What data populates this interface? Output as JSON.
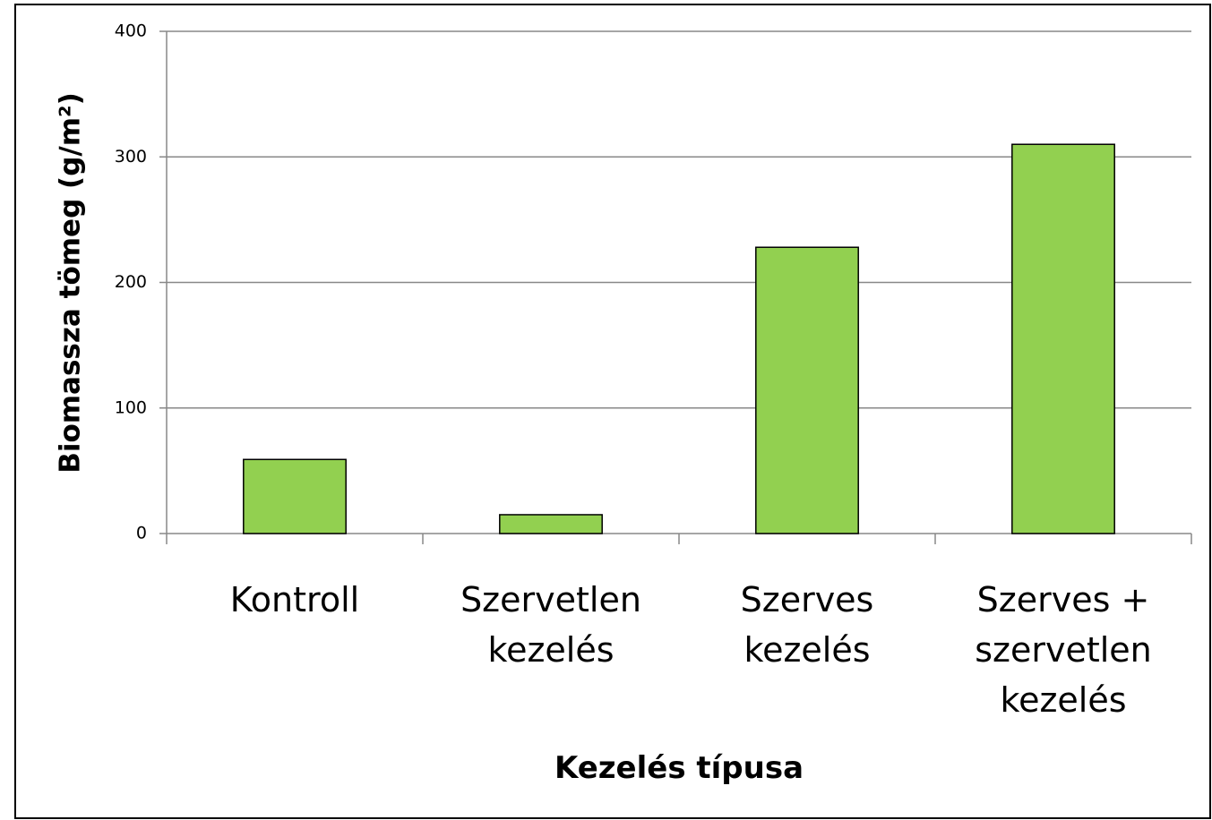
{
  "chart_data": {
    "type": "bar",
    "categories": [
      "Kontroll",
      "Szervetlen\nkezelés",
      "Szerves\nkezelés",
      "Szerves +\nszervetlen\nkezelés"
    ],
    "values": [
      59,
      15,
      228,
      310
    ],
    "color": "#92d050",
    "ylim": [
      0,
      400
    ],
    "yticks": [
      0,
      100,
      200,
      300,
      400
    ],
    "grid": true,
    "x_label": "Kezelés típusa",
    "y_label": "Biomassza tömeg (g/m²)"
  }
}
